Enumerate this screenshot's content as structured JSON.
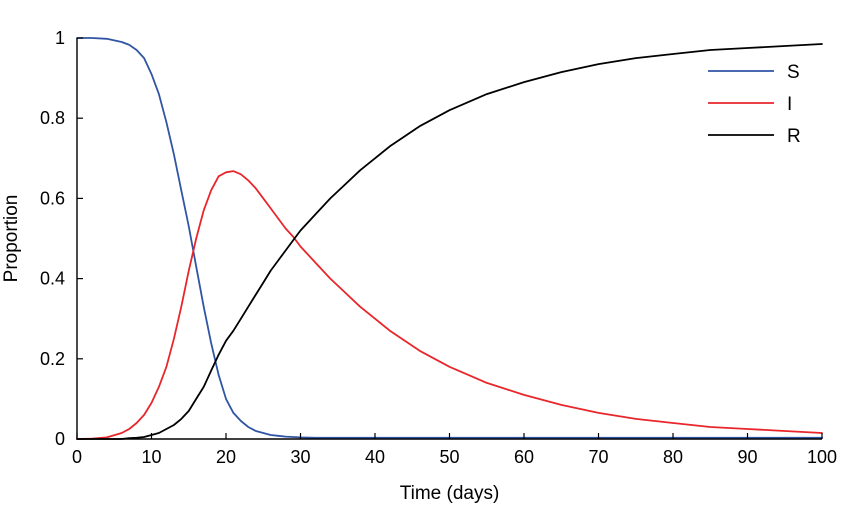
{
  "chart_data": {
    "type": "line",
    "xlabel": "Time (days)",
    "ylabel": "Proportion",
    "xlim": [
      0,
      100
    ],
    "ylim": [
      0,
      1
    ],
    "xticks": [
      0,
      10,
      20,
      30,
      40,
      50,
      60,
      70,
      80,
      90,
      100
    ],
    "xtick_labels": [
      "0",
      "10",
      "20",
      "30",
      "40",
      "50",
      "60",
      "70",
      "80",
      "90",
      "100"
    ],
    "yticks": [
      0,
      0.2,
      0.4,
      0.6,
      0.8,
      1
    ],
    "ytick_labels": [
      "0",
      "0.2",
      "0.4",
      "0.6",
      "0.8",
      "1"
    ],
    "grid": false,
    "legend_position": "top-right",
    "x": [
      0,
      2,
      4,
      6,
      7,
      8,
      9,
      10,
      11,
      12,
      13,
      14,
      15,
      16,
      17,
      18,
      19,
      20,
      21,
      22,
      23,
      24,
      25,
      26,
      27,
      28,
      29,
      30,
      32,
      34,
      36,
      38,
      40,
      42,
      44,
      46,
      48,
      50,
      55,
      60,
      65,
      70,
      75,
      80,
      85,
      90,
      95,
      100
    ],
    "series": [
      {
        "name": "S",
        "color": "#2f55a4",
        "values": [
          1,
          1,
          0.998,
          0.99,
          0.983,
          0.97,
          0.95,
          0.91,
          0.86,
          0.79,
          0.71,
          0.62,
          0.53,
          0.43,
          0.33,
          0.24,
          0.16,
          0.1,
          0.065,
          0.045,
          0.03,
          0.02,
          0.015,
          0.01,
          0.008,
          0.006,
          0.005,
          0.004,
          0.003,
          0.003,
          0.003,
          0.003,
          0.003,
          0.003,
          0.003,
          0.003,
          0.003,
          0.003,
          0.003,
          0.003,
          0.003,
          0.003,
          0.003,
          0.003,
          0.003,
          0.003,
          0.003,
          0.003
        ]
      },
      {
        "name": "I",
        "color": "#e8262b",
        "values": [
          0,
          0.001,
          0.004,
          0.015,
          0.025,
          0.04,
          0.06,
          0.09,
          0.13,
          0.18,
          0.25,
          0.33,
          0.42,
          0.5,
          0.57,
          0.62,
          0.655,
          0.665,
          0.668,
          0.66,
          0.645,
          0.625,
          0.6,
          0.575,
          0.55,
          0.525,
          0.505,
          0.48,
          0.44,
          0.4,
          0.365,
          0.33,
          0.3,
          0.27,
          0.245,
          0.22,
          0.2,
          0.18,
          0.14,
          0.11,
          0.085,
          0.065,
          0.05,
          0.04,
          0.03,
          0.025,
          0.02,
          0.015
        ]
      },
      {
        "name": "R",
        "color": "#000000",
        "values": [
          0,
          0,
          0,
          0,
          0.002,
          0.003,
          0.005,
          0.01,
          0.015,
          0.025,
          0.035,
          0.05,
          0.07,
          0.1,
          0.13,
          0.17,
          0.21,
          0.245,
          0.27,
          0.3,
          0.33,
          0.36,
          0.39,
          0.42,
          0.445,
          0.47,
          0.495,
          0.52,
          0.56,
          0.6,
          0.635,
          0.67,
          0.7,
          0.73,
          0.755,
          0.78,
          0.8,
          0.82,
          0.86,
          0.89,
          0.915,
          0.935,
          0.95,
          0.96,
          0.97,
          0.975,
          0.98,
          0.985
        ]
      }
    ]
  }
}
